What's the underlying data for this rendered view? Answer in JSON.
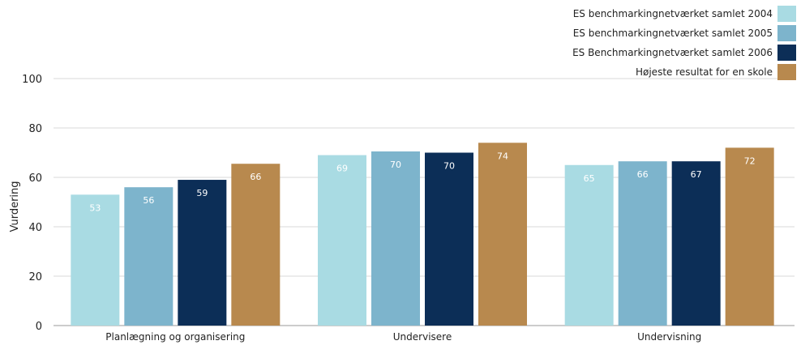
{
  "chart_data": {
    "type": "bar",
    "title": "",
    "xlabel": "",
    "ylabel": "Vurdering",
    "ylim": [
      0,
      100
    ],
    "yticks": [
      0,
      20,
      40,
      60,
      80,
      100
    ],
    "grid": true,
    "legend_position": "top-right",
    "categories": [
      "Planlægning og organisering",
      "Undervisere",
      "Undervisning"
    ],
    "series": [
      {
        "name": "ES benchmarkingnetværket samlet 2004",
        "color": "#a9dbe3",
        "label_color": "#ffffff",
        "values": [
          53,
          69,
          65
        ],
        "value_labels": [
          "53",
          "69",
          "65"
        ]
      },
      {
        "name": "ES benchmarkingnetværket samlet 2005",
        "color": "#7db4cc",
        "label_color": "#ffffff",
        "values": [
          56,
          70.5,
          66.5
        ],
        "value_labels": [
          "56",
          "70",
          "66"
        ]
      },
      {
        "name": "ES Benchmarkingnetværket samlet 2006",
        "color": "#0c2e57",
        "label_color": "#ffffff",
        "values": [
          59,
          70,
          66.5
        ],
        "value_labels": [
          "59",
          "70",
          "67"
        ]
      },
      {
        "name": "Højeste resultat for en skole",
        "color": "#b8894e",
        "label_color": "#ffffff",
        "values": [
          65.5,
          74,
          72
        ],
        "value_labels": [
          "66",
          "74",
          "72"
        ]
      }
    ]
  }
}
